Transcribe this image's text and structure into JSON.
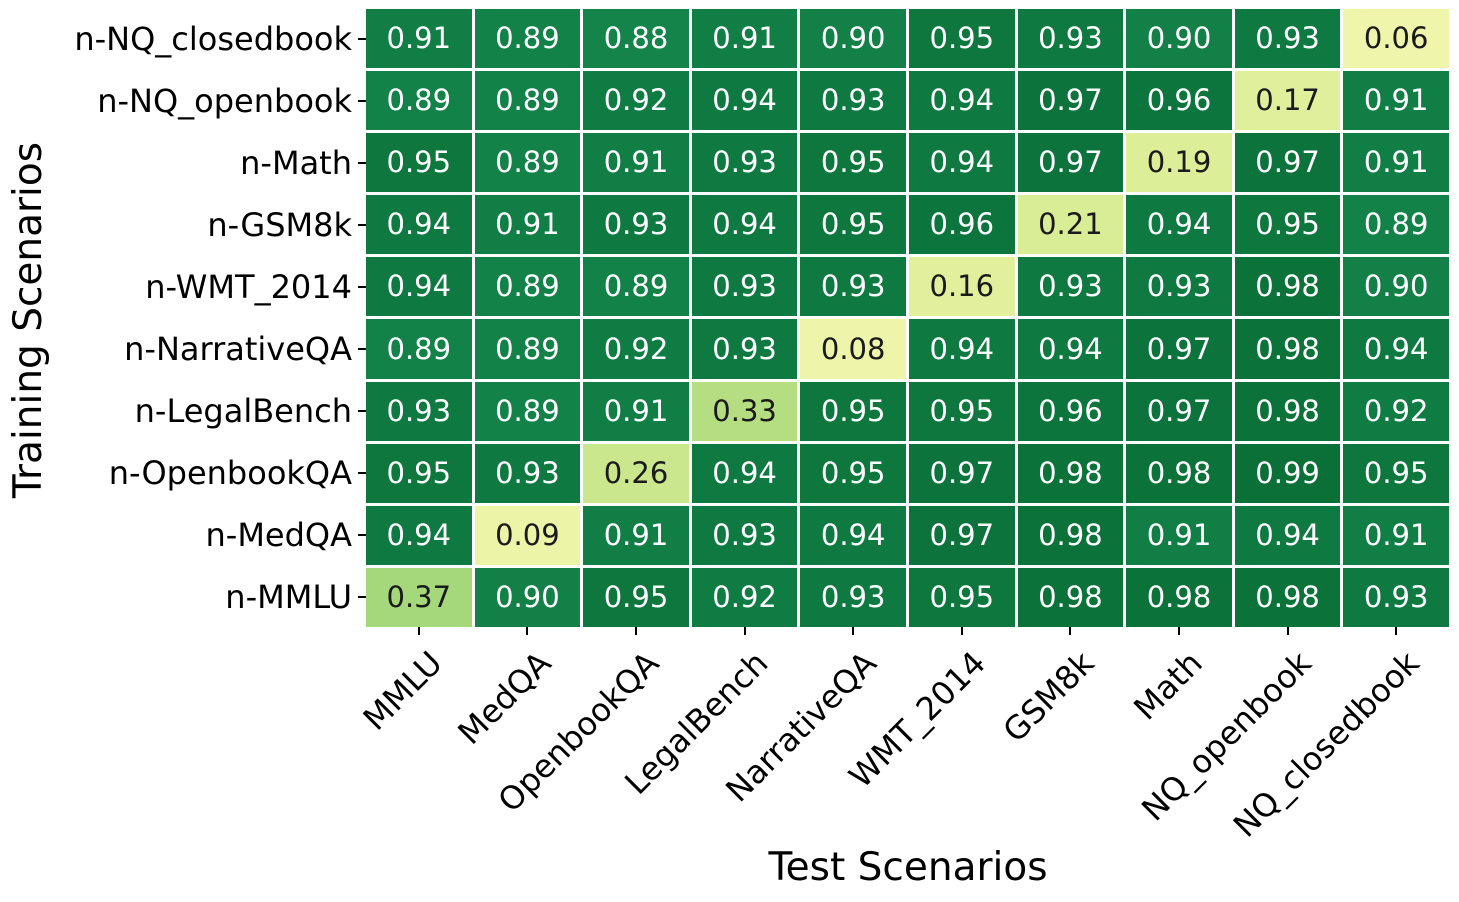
{
  "figure": {
    "background": "#ffffff"
  },
  "chart_data": {
    "type": "heatmap",
    "title": "",
    "xlabel": "Test Scenarios",
    "ylabel": "Training Scenarios",
    "x_categories": [
      "MMLU",
      "MedQA",
      "OpenbookQA",
      "LegalBench",
      "NarrativeQA",
      "WMT_2014",
      "GSM8k",
      "Math",
      "NQ_openbook",
      "NQ_closedbook"
    ],
    "y_categories": [
      "n-NQ_closedbook",
      "n-NQ_openbook",
      "n-Math",
      "n-GSM8k",
      "n-WMT_2014",
      "n-NarrativeQA",
      "n-LegalBench",
      "n-OpenbookQA",
      "n-MedQA",
      "n-MMLU"
    ],
    "matrix": [
      [
        0.91,
        0.89,
        0.88,
        0.91,
        0.9,
        0.95,
        0.93,
        0.9,
        0.93,
        0.06
      ],
      [
        0.89,
        0.89,
        0.92,
        0.94,
        0.93,
        0.94,
        0.97,
        0.96,
        0.17,
        0.91
      ],
      [
        0.95,
        0.89,
        0.91,
        0.93,
        0.95,
        0.94,
        0.97,
        0.19,
        0.97,
        0.91
      ],
      [
        0.94,
        0.91,
        0.93,
        0.94,
        0.95,
        0.96,
        0.21,
        0.94,
        0.95,
        0.89
      ],
      [
        0.94,
        0.89,
        0.89,
        0.93,
        0.93,
        0.16,
        0.93,
        0.93,
        0.98,
        0.9
      ],
      [
        0.89,
        0.89,
        0.92,
        0.93,
        0.08,
        0.94,
        0.94,
        0.97,
        0.98,
        0.94
      ],
      [
        0.93,
        0.89,
        0.91,
        0.33,
        0.95,
        0.95,
        0.96,
        0.97,
        0.98,
        0.92
      ],
      [
        0.95,
        0.93,
        0.26,
        0.94,
        0.95,
        0.97,
        0.98,
        0.98,
        0.99,
        0.95
      ],
      [
        0.94,
        0.09,
        0.91,
        0.93,
        0.94,
        0.97,
        0.98,
        0.91,
        0.94,
        0.91
      ],
      [
        0.37,
        0.9,
        0.95,
        0.92,
        0.93,
        0.95,
        0.98,
        0.98,
        0.98,
        0.93
      ]
    ],
    "value_decimals": 2,
    "value_range": [
      0,
      1
    ],
    "colormap_name": "YlGn",
    "colormap_stops": [
      [
        0.0,
        "#f7f9b2"
      ],
      [
        0.06,
        "#f0f5ac"
      ],
      [
        0.1,
        "#ebf3a6"
      ],
      [
        0.16,
        "#e2f09d"
      ],
      [
        0.21,
        "#d9ec96"
      ],
      [
        0.26,
        "#cbe78e"
      ],
      [
        0.33,
        "#b5dd81"
      ],
      [
        0.37,
        "#a5d87a"
      ],
      [
        0.5,
        "#78c679"
      ],
      [
        0.6,
        "#4eb467"
      ],
      [
        0.7,
        "#2f9f52"
      ],
      [
        0.8,
        "#1b8c4e"
      ],
      [
        0.88,
        "#14844a"
      ],
      [
        0.92,
        "#0f7c43"
      ],
      [
        1.0,
        "#096e36"
      ]
    ],
    "grid_line_color": "#ffffff",
    "cell_text_color_light_bg": "#1a1a1a",
    "cell_text_color_dark_bg": "#ffffff",
    "dark_text_threshold": 0.5,
    "tick_color": "#000000",
    "axis_label_color": "#000000",
    "legend": "none"
  }
}
